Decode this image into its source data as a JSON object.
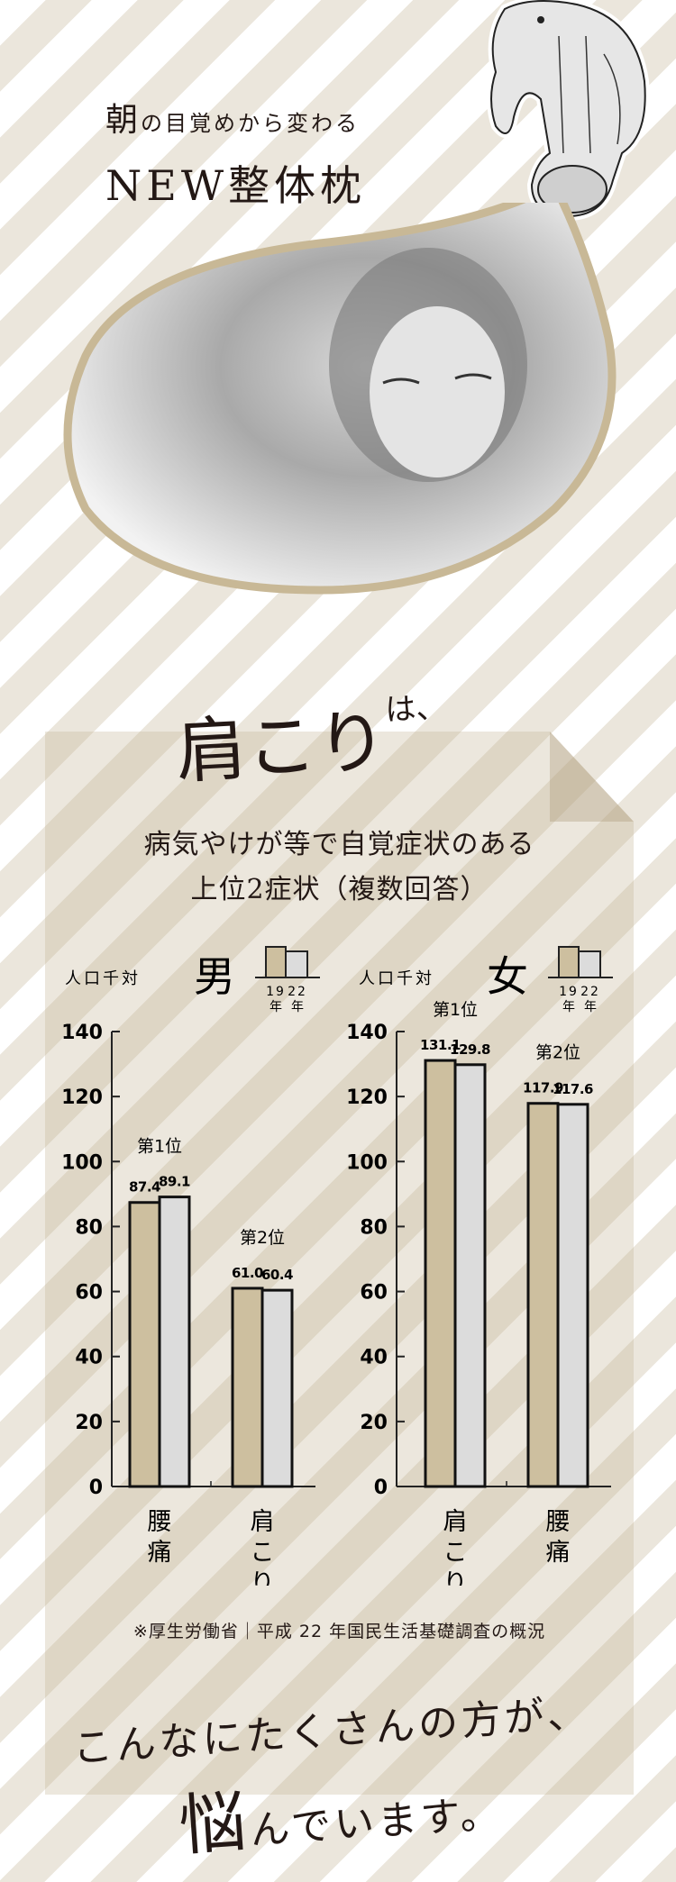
{
  "header": {
    "title_lead": "朝",
    "title_rest": "の目覚めから変わる",
    "product": "NEW整体枕"
  },
  "heading": {
    "main": "肩こり",
    "tail": "は、"
  },
  "subtitle": {
    "line1": "病気やけが等で自覚症状のある",
    "line2": "上位2症状（複数回答）"
  },
  "source": "※厚生労働省｜平成 22 年国民生活基礎調査の概況",
  "footer": {
    "line1": "こんなにたくさんの方が、",
    "line2_big": "悩",
    "line2_rest": "んでいます。"
  },
  "colors": {
    "year_19": "#cdbf9f",
    "year_22": "#dcdcdc",
    "accent_outline": "#c8b896",
    "stripe": "#ebe6dc"
  },
  "chart_data": [
    {
      "type": "bar",
      "title": "男",
      "ylabel": "人口千対",
      "ylim": [
        0,
        140
      ],
      "yticks": [
        0,
        20,
        40,
        60,
        80,
        100,
        120,
        140
      ],
      "legend_years": [
        "19",
        "22"
      ],
      "legend_unit": "年",
      "categories": [
        "腰痛",
        "肩こり"
      ],
      "ranks": [
        "第1位",
        "第2位"
      ],
      "series": [
        {
          "values": [
            87.4,
            61.0
          ],
          "labels": [
            "87.4",
            "61.0"
          ]
        },
        {
          "values": [
            89.1,
            60.4
          ],
          "labels": [
            "89.1",
            "60.4"
          ]
        }
      ]
    },
    {
      "type": "bar",
      "title": "女",
      "ylabel": "人口千対",
      "ylim": [
        0,
        140
      ],
      "yticks": [
        0,
        20,
        40,
        60,
        80,
        100,
        120,
        140
      ],
      "legend_years": [
        "19",
        "22"
      ],
      "legend_unit": "年",
      "categories": [
        "肩こり",
        "腰痛"
      ],
      "ranks": [
        "第1位",
        "第2位"
      ],
      "series": [
        {
          "values": [
            131.1,
            117.9
          ],
          "labels": [
            "131.1",
            "117.9"
          ]
        },
        {
          "values": [
            129.8,
            117.6
          ],
          "labels": [
            "129.8",
            "117.6"
          ]
        }
      ]
    }
  ]
}
